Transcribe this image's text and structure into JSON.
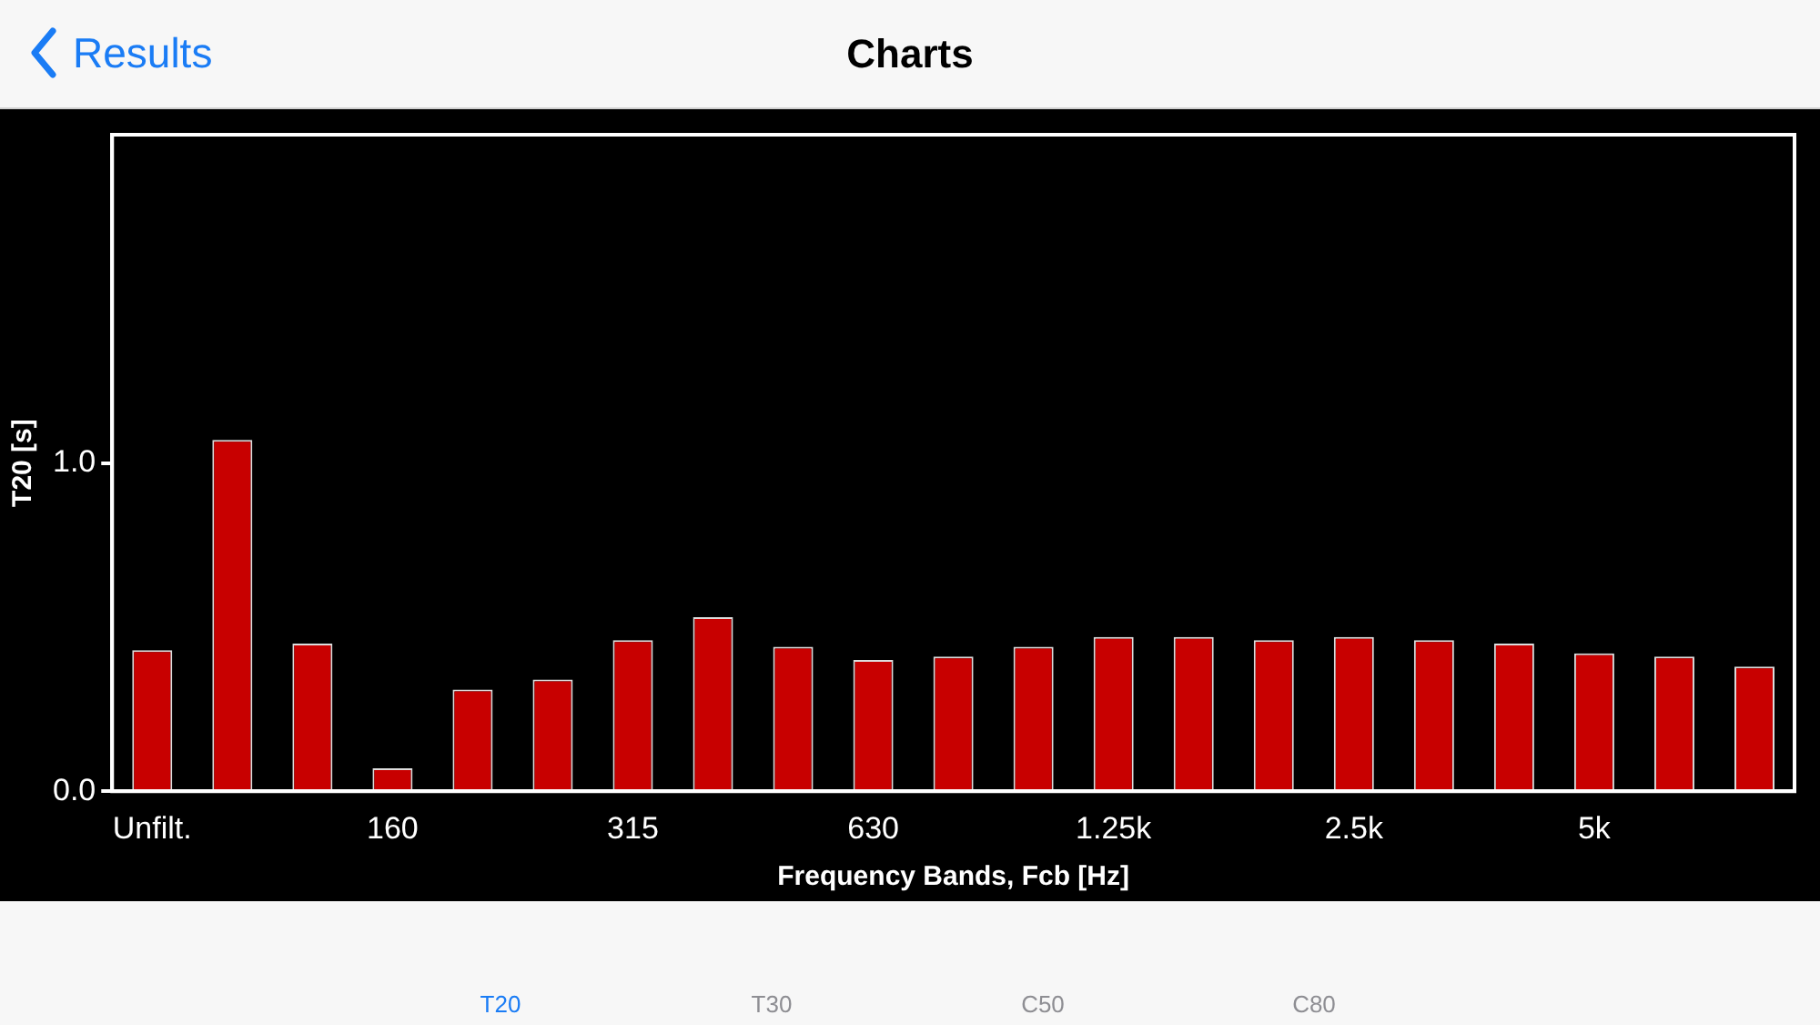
{
  "chart_data": {
    "type": "bar",
    "title": "Charts",
    "xlabel": "Frequency Bands, Fcb [Hz]",
    "ylabel": "T20 [s]",
    "categories": [
      "Unfilt.",
      null,
      null,
      "160",
      null,
      null,
      "315",
      null,
      null,
      "630",
      null,
      null,
      "1.25k",
      null,
      null,
      "2.5k",
      null,
      null,
      "5k",
      null,
      null
    ],
    "values": [
      0.43,
      1.07,
      0.45,
      0.07,
      0.31,
      0.34,
      0.46,
      0.53,
      0.44,
      0.4,
      0.41,
      0.44,
      0.47,
      0.47,
      0.46,
      0.47,
      0.46,
      0.45,
      0.42,
      0.41,
      0.38
    ],
    "color": "#c80000",
    "ylim": [
      0,
      2
    ],
    "yticks": [
      {
        "value": 0,
        "label": "0.0"
      },
      {
        "value": 1,
        "label": "1.0"
      }
    ],
    "grid": false,
    "legend": false,
    "annotations": [
      "Results",
      "T20",
      "T30",
      "C50",
      "C80"
    ]
  }
}
